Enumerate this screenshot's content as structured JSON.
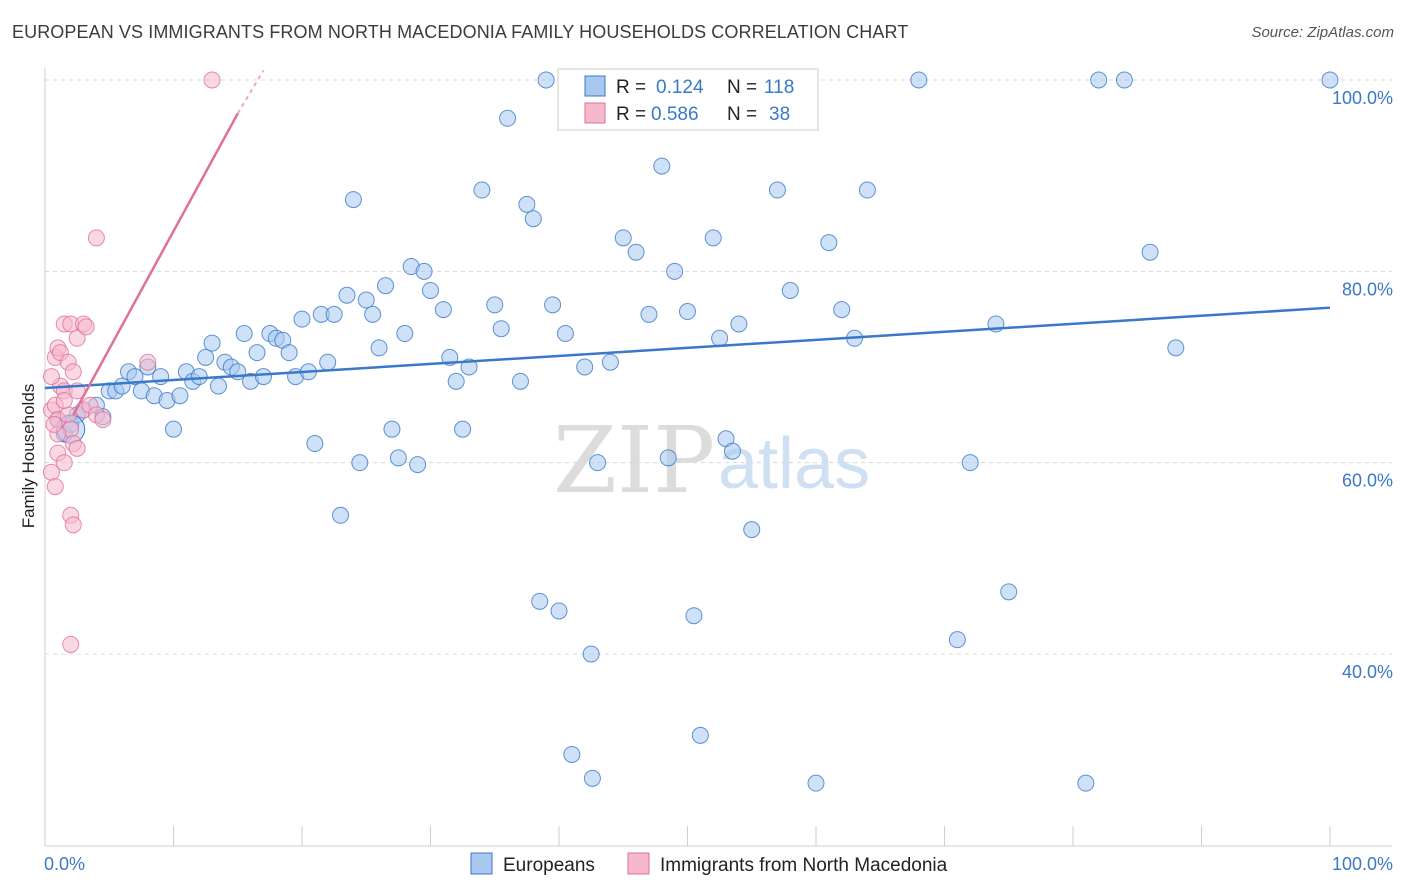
{
  "header": {
    "title": "EUROPEAN VS IMMIGRANTS FROM NORTH MACEDONIA FAMILY HOUSEHOLDS CORRELATION CHART",
    "source": "Source: ZipAtlas.com"
  },
  "watermark": {
    "zip": "ZIP",
    "atlas": "atlas"
  },
  "colors": {
    "blue": "#3a78c9",
    "blue_fill": "#a8c8f0",
    "pink": "#e0709a",
    "pink_fill": "#f5b8cc",
    "grid": "#d8d8d8"
  },
  "legend": {
    "r_label": "R =",
    "n_label": "N =",
    "rows": [
      {
        "series": "Europeans",
        "r": "0.124",
        "n": "118"
      },
      {
        "series": "Immigrants from North Macedonia",
        "r": "0.586",
        "n": "38"
      }
    ]
  },
  "bottom_legend": [
    "Europeans",
    "Immigrants from North Macedonia"
  ],
  "chart_data": {
    "type": "scatter",
    "title": "EUROPEAN VS IMMIGRANTS FROM NORTH MACEDONIA FAMILY HOUSEHOLDS CORRELATION CHART",
    "xlabel": "",
    "ylabel": "Family Households",
    "xlim": [
      0,
      100
    ],
    "ylim": [
      20,
      101
    ],
    "x_tick_labels": [
      "0.0%",
      "100.0%"
    ],
    "y_ticks": [
      40,
      60,
      80,
      100
    ],
    "y_tick_labels": [
      "40.0%",
      "60.0%",
      "80.0%",
      "100.0%"
    ],
    "grid": true,
    "series": [
      {
        "name": "Europeans",
        "color": "#3a78c9",
        "trend": {
          "x": [
            0,
            100
          ],
          "y": [
            67.8,
            76.2
          ]
        },
        "points": [
          [
            1.5,
            63
          ],
          [
            2,
            64
          ],
          [
            1,
            64.5
          ],
          [
            2.5,
            65
          ],
          [
            3,
            65.5
          ],
          [
            4,
            66
          ],
          [
            4.5,
            64.8
          ],
          [
            5,
            67.5
          ],
          [
            5.5,
            67.5
          ],
          [
            6,
            68
          ],
          [
            6.5,
            69.5
          ],
          [
            7,
            69
          ],
          [
            7.5,
            67.5
          ],
          [
            8,
            70
          ],
          [
            8.5,
            67
          ],
          [
            9,
            69
          ],
          [
            9.5,
            66.5
          ],
          [
            10,
            63.5
          ],
          [
            10.5,
            67
          ],
          [
            11,
            69.5
          ],
          [
            11.5,
            68.5
          ],
          [
            12,
            69
          ],
          [
            12.5,
            71
          ],
          [
            13,
            72.5
          ],
          [
            13.5,
            68
          ],
          [
            14,
            70.5
          ],
          [
            14.5,
            70
          ],
          [
            15,
            69.5
          ],
          [
            15.5,
            73.5
          ],
          [
            16,
            68.5
          ],
          [
            16.5,
            71.5
          ],
          [
            17,
            69
          ],
          [
            17.5,
            73.5
          ],
          [
            18,
            73
          ],
          [
            18.5,
            72.8
          ],
          [
            19,
            71.5
          ],
          [
            19.5,
            69
          ],
          [
            20,
            75
          ],
          [
            20.5,
            69.5
          ],
          [
            21,
            62
          ],
          [
            21.5,
            75.5
          ],
          [
            22,
            70.5
          ],
          [
            22.5,
            75.5
          ],
          [
            23,
            54.5
          ],
          [
            23.5,
            77.5
          ],
          [
            24,
            87.5
          ],
          [
            24.5,
            60
          ],
          [
            25,
            77
          ],
          [
            25.5,
            75.5
          ],
          [
            26,
            72
          ],
          [
            26.5,
            78.5
          ],
          [
            27,
            63.5
          ],
          [
            27.5,
            60.5
          ],
          [
            28,
            73.5
          ],
          [
            28.5,
            80.5
          ],
          [
            29,
            59.8
          ],
          [
            29.5,
            80
          ],
          [
            30,
            78
          ],
          [
            31,
            76
          ],
          [
            31.5,
            71
          ],
          [
            32,
            68.5
          ],
          [
            32.5,
            63.5
          ],
          [
            33,
            70
          ],
          [
            34,
            88.5
          ],
          [
            35,
            76.5
          ],
          [
            35.5,
            74
          ],
          [
            36,
            96
          ],
          [
            37,
            68.5
          ],
          [
            37.5,
            87
          ],
          [
            38,
            85.5
          ],
          [
            38.5,
            45.5
          ],
          [
            39,
            100
          ],
          [
            39.5,
            76.5
          ],
          [
            40,
            44.5
          ],
          [
            40.5,
            73.5
          ],
          [
            41,
            29.5
          ],
          [
            42,
            70
          ],
          [
            42.5,
            40
          ],
          [
            42.6,
            27
          ],
          [
            43,
            60
          ],
          [
            44,
            70.5
          ],
          [
            45,
            83.5
          ],
          [
            46,
            82
          ],
          [
            47,
            75.5
          ],
          [
            48,
            91
          ],
          [
            49,
            80
          ],
          [
            50,
            75.8
          ],
          [
            50.5,
            44
          ],
          [
            51,
            31.5
          ],
          [
            52,
            83.5
          ],
          [
            52.5,
            73
          ],
          [
            53,
            62.5
          ],
          [
            53.5,
            61.2
          ],
          [
            54,
            74.5
          ],
          [
            55,
            53
          ],
          [
            57,
            88.5
          ],
          [
            58,
            78
          ],
          [
            60,
            26.5
          ],
          [
            61,
            83
          ],
          [
            62,
            76
          ],
          [
            63,
            73
          ],
          [
            64,
            88.5
          ],
          [
            68,
            100
          ],
          [
            71,
            41.5
          ],
          [
            72,
            60
          ],
          [
            74,
            74.5
          ],
          [
            75,
            46.5
          ],
          [
            81,
            26.5
          ],
          [
            82,
            100
          ],
          [
            84,
            100
          ],
          [
            86,
            82
          ],
          [
            88,
            72
          ],
          [
            100,
            100
          ],
          [
            48.5,
            60.5
          ],
          [
            53,
            96
          ]
        ]
      },
      {
        "name": "Immigrants from North Macedonia",
        "color": "#e0709a",
        "trend": {
          "x": [
            2.2,
            15
          ],
          "y": [
            65,
            96.5
          ],
          "dash_to": {
            "x": 17,
            "y": 101
          }
        },
        "points": [
          [
            0.5,
            65.5
          ],
          [
            0.8,
            66
          ],
          [
            1,
            64.5
          ],
          [
            1.2,
            68
          ],
          [
            1.5,
            67.5
          ],
          [
            1.8,
            65
          ],
          [
            2,
            63.5
          ],
          [
            2.2,
            62
          ],
          [
            2.5,
            61.5
          ],
          [
            0.5,
            69
          ],
          [
            0.8,
            71
          ],
          [
            1,
            72
          ],
          [
            1.2,
            71.5
          ],
          [
            1.5,
            74.5
          ],
          [
            2,
            74.5
          ],
          [
            2.5,
            73
          ],
          [
            3,
            74.5
          ],
          [
            3.2,
            74.2
          ],
          [
            0.5,
            59
          ],
          [
            0.8,
            57.5
          ],
          [
            1,
            61
          ],
          [
            1.5,
            60
          ],
          [
            2,
            54.5
          ],
          [
            2.2,
            53.5
          ],
          [
            2,
            41
          ],
          [
            4,
            83.5
          ],
          [
            8,
            70.5
          ],
          [
            13,
            100
          ],
          [
            3,
            65.5
          ],
          [
            3.5,
            66
          ],
          [
            4,
            65
          ],
          [
            4.5,
            64.5
          ],
          [
            1.8,
            70.5
          ],
          [
            2.2,
            69.5
          ],
          [
            1,
            63
          ],
          [
            1.5,
            66.5
          ],
          [
            2.5,
            67.5
          ],
          [
            0.7,
            64
          ]
        ]
      }
    ]
  }
}
